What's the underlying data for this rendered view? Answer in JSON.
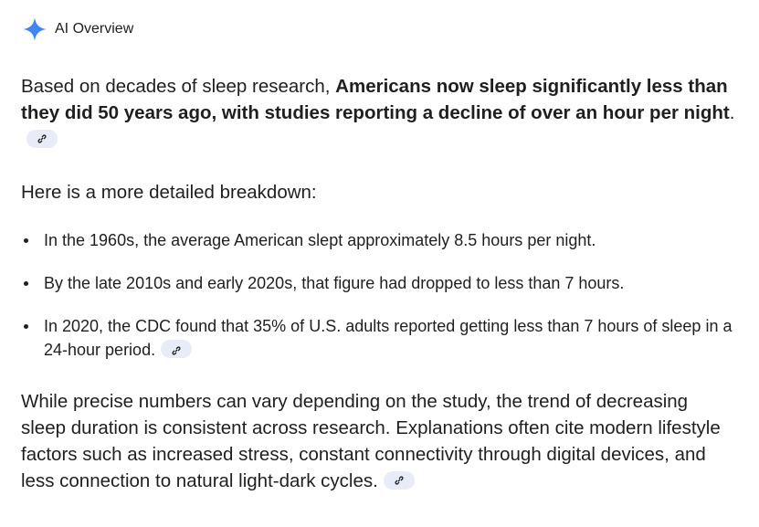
{
  "header": {
    "title": "AI Overview",
    "icon": "sparkle-icon",
    "icon_color": "#4285f4"
  },
  "intro": {
    "prefix": "Based on decades of sleep research, ",
    "bold": "Americans now sleep significantly less than they did 50 years ago, with studies reporting a decline of over an hour per night",
    "suffix": "."
  },
  "breakdown_heading": "Here is a more detailed breakdown:",
  "bullets": [
    "In the 1960s, the average American slept approximately 8.5 hours per night.",
    "By the late 2010s and early 2020s, that figure had dropped to less than 7 hours.",
    "In 2020, the CDC found that 35% of U.S. adults reported getting less than 7 hours of sleep in a 24-hour period."
  ],
  "conclusion": "While precise numbers can vary depending on the study, the trend of decreasing sleep duration is consistent across research. Explanations often cite modern lifestyle factors such as increased stress, constant connectivity through digital devices, and less connection to natural light-dark cycles."
}
